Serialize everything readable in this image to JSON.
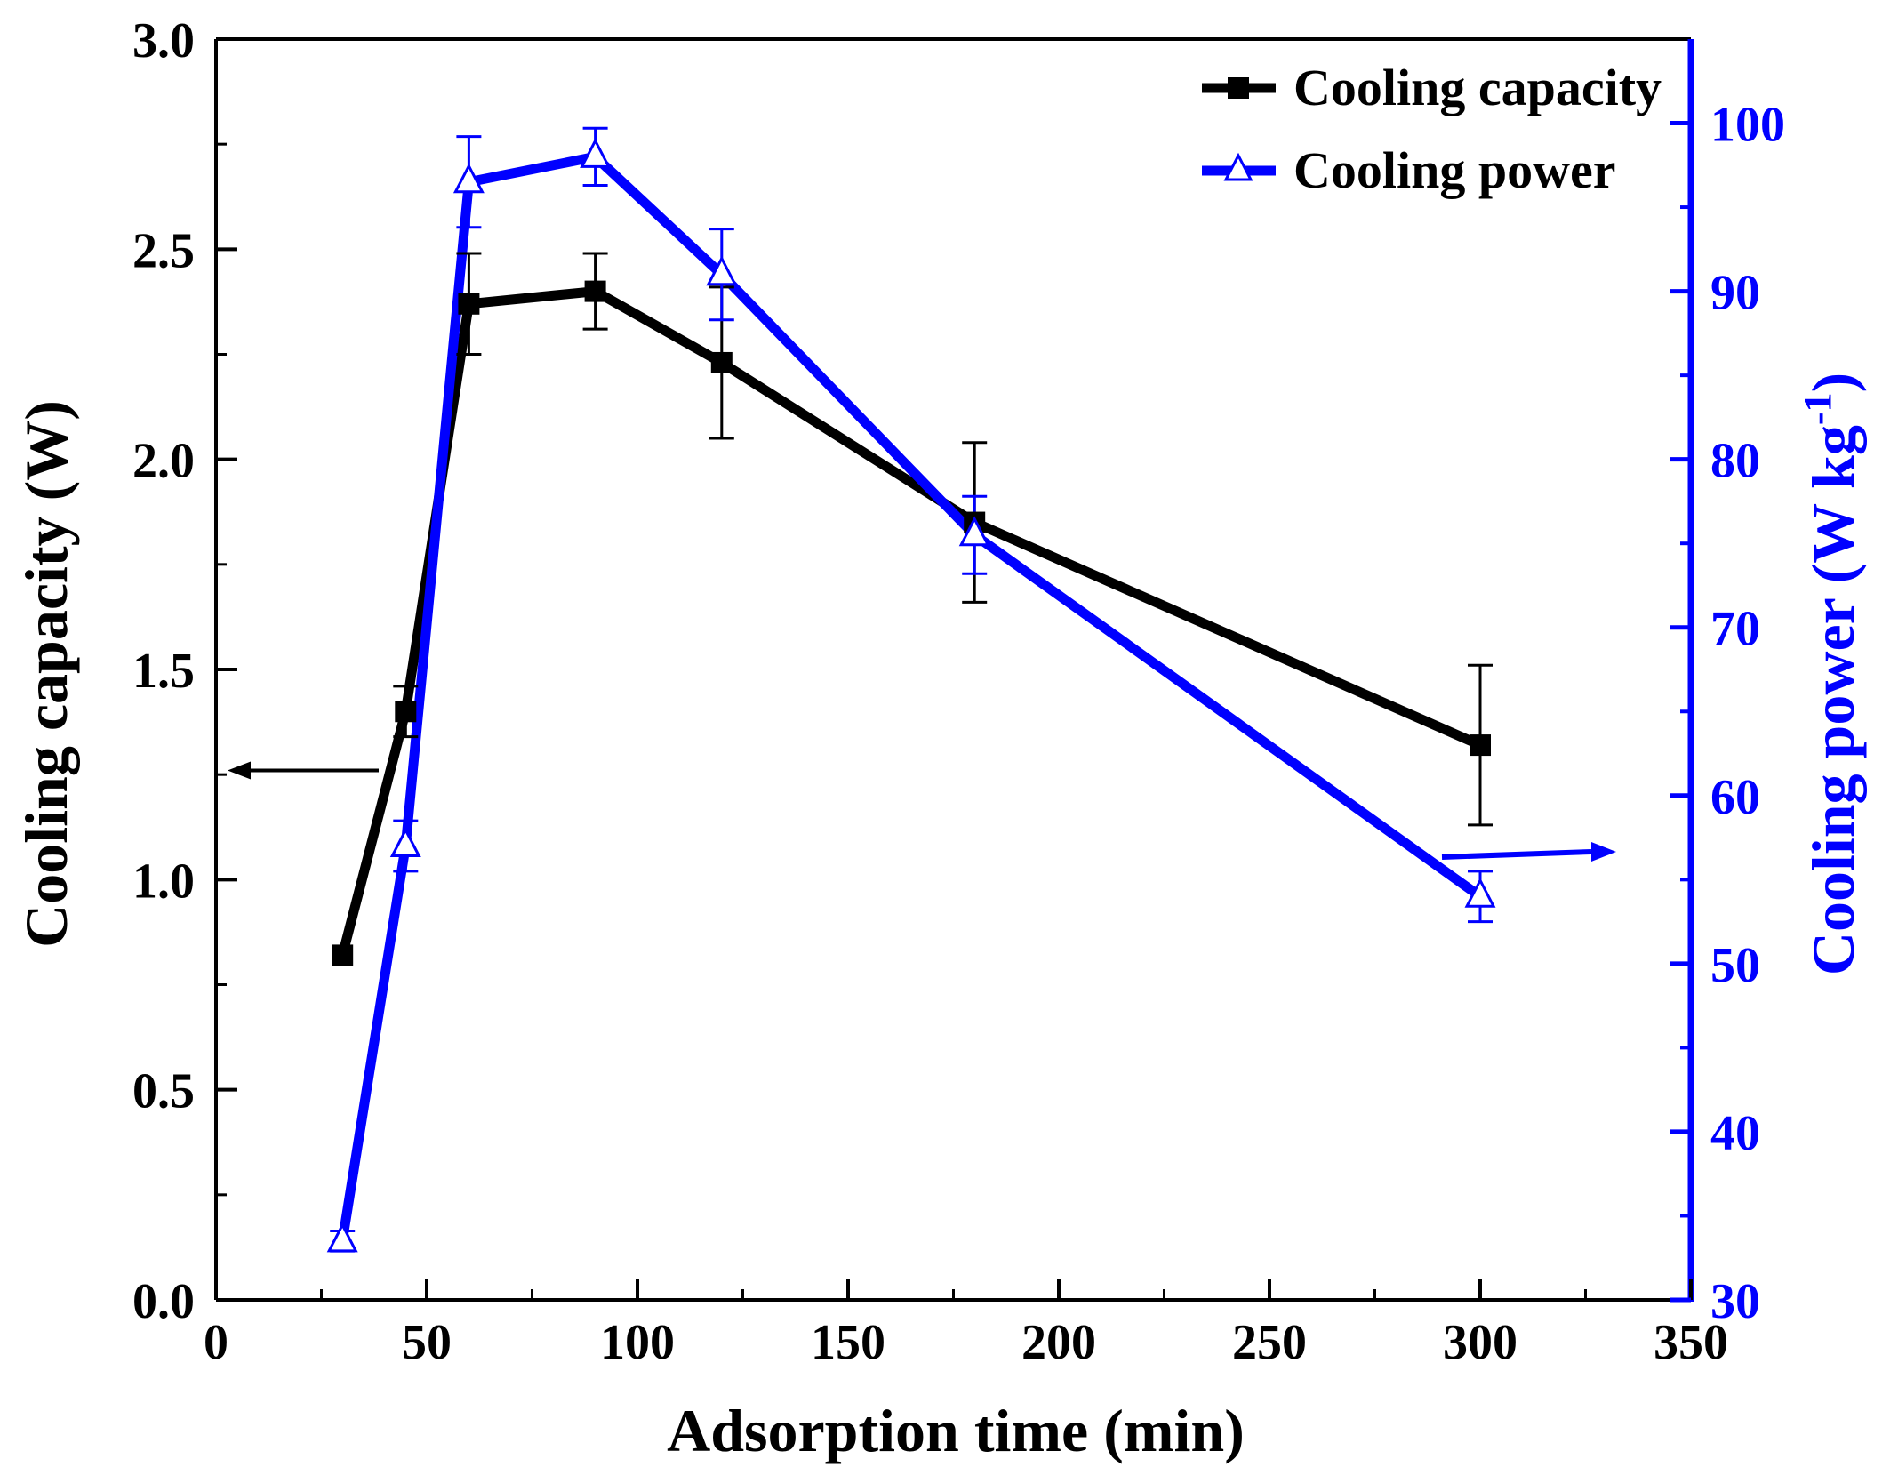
{
  "chart_data": {
    "type": "line",
    "title": "",
    "xlabel": "Adsorption time (min)",
    "ylabel_left": "Cooling capacity (W)",
    "ylabel_right": "Cooling power (W kg",
    "ylabel_right_sup": "-1",
    "ylabel_right_close": ")",
    "xlim": [
      0,
      350
    ],
    "ylim_left": [
      0.0,
      3.0
    ],
    "ylim_right": [
      30,
      105
    ],
    "x_ticks": [
      0,
      50,
      100,
      150,
      200,
      250,
      300,
      350
    ],
    "y_left_ticks": [
      "0.0",
      "0.5",
      "1.0",
      "1.5",
      "2.0",
      "2.5",
      "3.0"
    ],
    "y_right_ticks": [
      30,
      40,
      50,
      60,
      70,
      80,
      90,
      100
    ],
    "legend_position": "top-right",
    "grid": false,
    "series": [
      {
        "name": "Cooling capacity",
        "axis": "left",
        "marker": "filled-square",
        "color": "#000000",
        "x": [
          30,
          45,
          60,
          90,
          120,
          180,
          300
        ],
        "y": [
          0.82,
          1.4,
          2.37,
          2.4,
          2.23,
          1.85,
          1.32
        ],
        "err": [
          0.0,
          0.06,
          0.12,
          0.09,
          0.18,
          0.19,
          0.19
        ]
      },
      {
        "name": "Cooling power",
        "axis": "right",
        "marker": "open-triangle",
        "color": "#0000ff",
        "x": [
          30,
          45,
          60,
          90,
          120,
          180,
          300
        ],
        "y": [
          33.5,
          57.0,
          96.5,
          98.0,
          91.0,
          75.5,
          54.0
        ],
        "err": [
          0.6,
          1.5,
          2.7,
          1.7,
          2.7,
          2.3,
          1.5
        ]
      }
    ],
    "annotations": [
      {
        "type": "arrow",
        "direction": "left",
        "points_to": "left axis",
        "color": "#000000"
      },
      {
        "type": "arrow",
        "direction": "right",
        "points_to": "right axis",
        "color": "#0000ff"
      }
    ]
  }
}
